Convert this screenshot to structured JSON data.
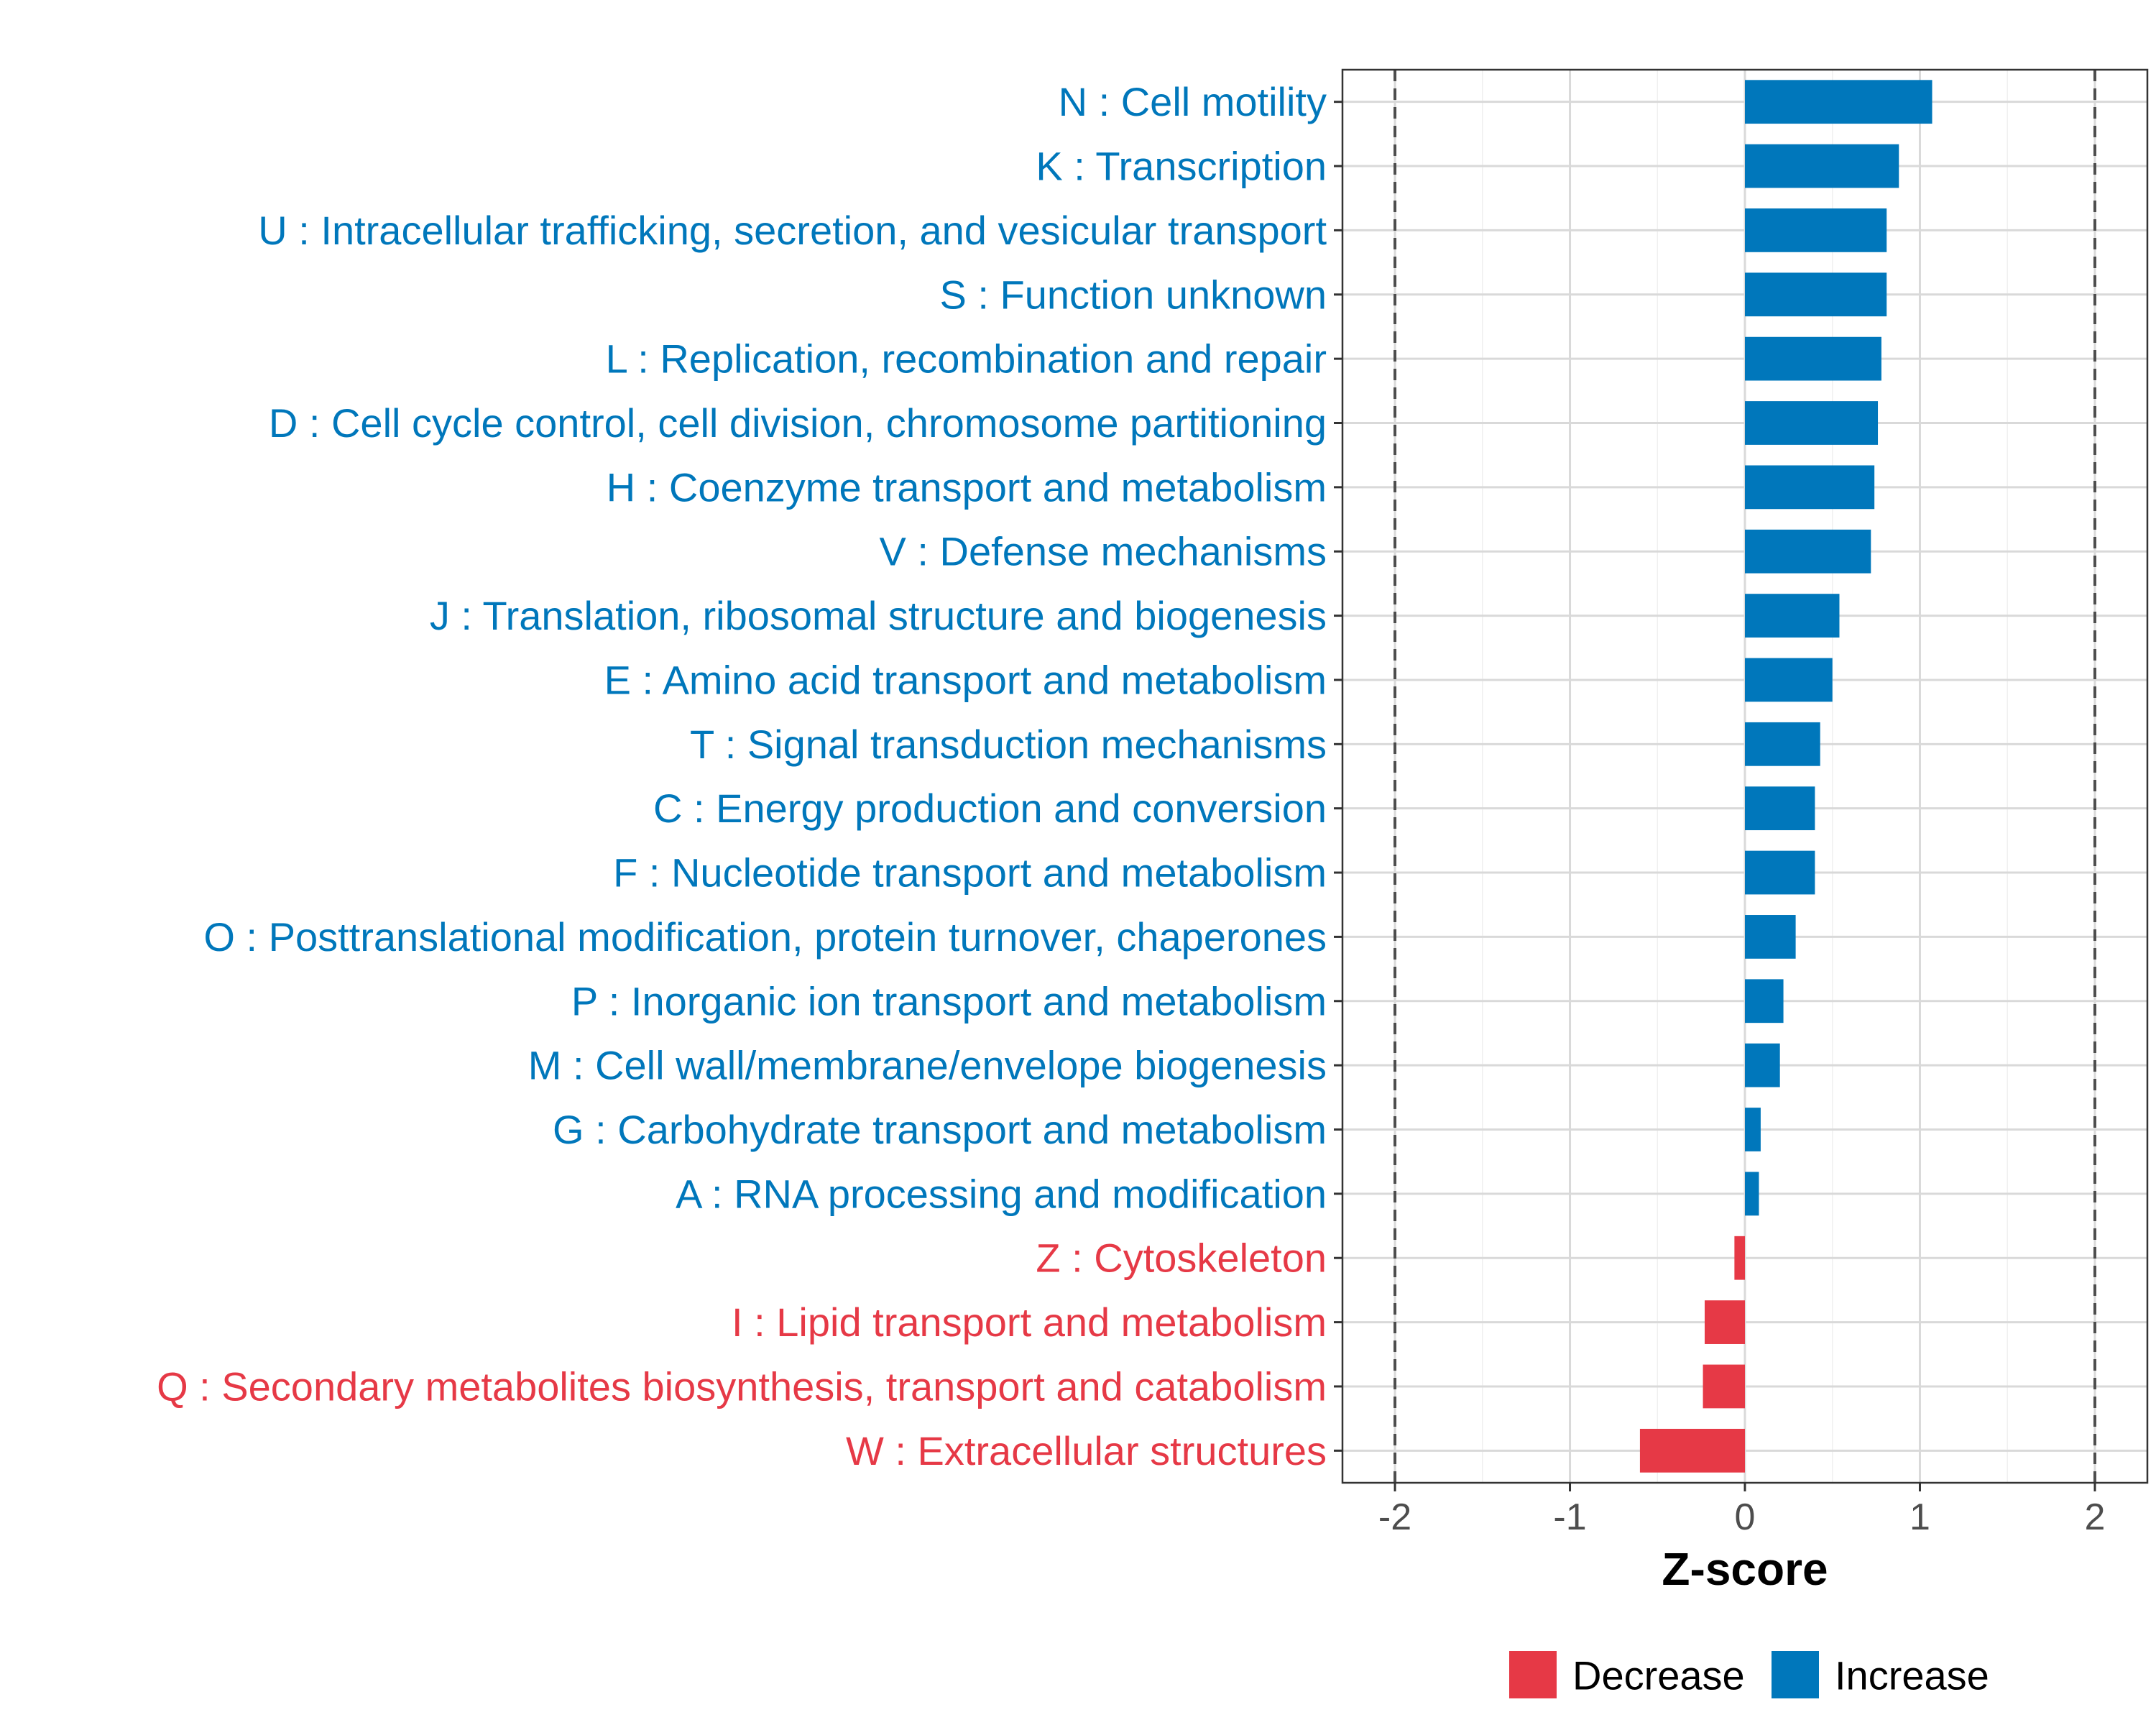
{
  "chart_data": {
    "type": "bar",
    "orientation": "horizontal",
    "xlabel": "Z-score",
    "ylabel": "",
    "xlim": [
      -2.3,
      2.3
    ],
    "xticks": [
      -2,
      -1,
      0,
      1,
      2
    ],
    "xtick_labels": [
      "-2",
      "-1",
      "0",
      "1",
      "2"
    ],
    "reference_lines": [
      -2,
      2
    ],
    "grid": true,
    "legend_position": "bottom",
    "colors": {
      "Decrease": "#E63946",
      "Increase": "#0077BB"
    },
    "legend": [
      {
        "label": "Decrease",
        "color": "#E63946"
      },
      {
        "label": "Increase",
        "color": "#0077BB"
      }
    ],
    "categories": [
      "N : Cell motility",
      "K : Transcription",
      "U : Intracellular trafficking, secretion, and vesicular transport",
      "S : Function unknown",
      "L : Replication, recombination and repair",
      "D : Cell cycle control, cell division, chromosome partitioning",
      "H : Coenzyme transport and metabolism",
      "V : Defense mechanisms",
      "J : Translation, ribosomal structure and biogenesis",
      "E : Amino acid transport and metabolism",
      "T : Signal transduction mechanisms",
      "C : Energy production and conversion",
      "F : Nucleotide transport and metabolism",
      "O : Posttranslational modification, protein turnover, chaperones",
      "P : Inorganic ion transport and metabolism",
      "M : Cell wall/membrane/envelope biogenesis",
      "G : Carbohydrate transport and metabolism",
      "A : RNA processing and modification",
      "Z : Cytoskeleton",
      "I : Lipid transport and metabolism",
      "Q : Secondary metabolites biosynthesis, transport and catabolism",
      "W : Extracellular structures"
    ],
    "values": [
      1.07,
      0.88,
      0.81,
      0.81,
      0.78,
      0.76,
      0.74,
      0.72,
      0.54,
      0.5,
      0.43,
      0.4,
      0.4,
      0.29,
      0.22,
      0.2,
      0.09,
      0.08,
      -0.06,
      -0.23,
      -0.24,
      -0.6
    ]
  }
}
